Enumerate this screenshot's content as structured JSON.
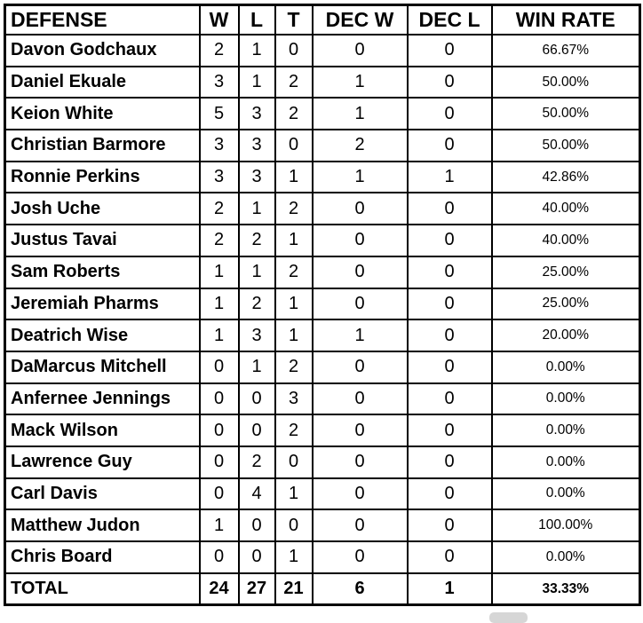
{
  "chart_data": {
    "type": "table",
    "columns": [
      "DEFENSE",
      "W",
      "L",
      "T",
      "DEC W",
      "DEC L",
      "WIN RATE"
    ],
    "rows": [
      [
        "Davon Godchaux",
        2,
        1,
        0,
        0,
        0,
        "66.67%"
      ],
      [
        "Daniel Ekuale",
        3,
        1,
        2,
        1,
        0,
        "50.00%"
      ],
      [
        "Keion White",
        5,
        3,
        2,
        1,
        0,
        "50.00%"
      ],
      [
        "Christian Barmore",
        3,
        3,
        0,
        2,
        0,
        "50.00%"
      ],
      [
        "Ronnie Perkins",
        3,
        3,
        1,
        1,
        1,
        "42.86%"
      ],
      [
        "Josh Uche",
        2,
        1,
        2,
        0,
        0,
        "40.00%"
      ],
      [
        "Justus Tavai",
        2,
        2,
        1,
        0,
        0,
        "40.00%"
      ],
      [
        "Sam Roberts",
        1,
        1,
        2,
        0,
        0,
        "25.00%"
      ],
      [
        "Jeremiah Pharms",
        1,
        2,
        1,
        0,
        0,
        "25.00%"
      ],
      [
        "Deatrich Wise",
        1,
        3,
        1,
        1,
        0,
        "20.00%"
      ],
      [
        "DaMarcus Mitchell",
        0,
        1,
        2,
        0,
        0,
        "0.00%"
      ],
      [
        "Anfernee Jennings",
        0,
        0,
        3,
        0,
        0,
        "0.00%"
      ],
      [
        "Mack Wilson",
        0,
        0,
        2,
        0,
        0,
        "0.00%"
      ],
      [
        "Lawrence Guy",
        0,
        2,
        0,
        0,
        0,
        "0.00%"
      ],
      [
        "Carl Davis",
        0,
        4,
        1,
        0,
        0,
        "0.00%"
      ],
      [
        "Matthew Judon",
        1,
        0,
        0,
        0,
        0,
        "100.00%"
      ],
      [
        "Chris Board",
        0,
        0,
        1,
        0,
        0,
        "0.00%"
      ]
    ],
    "total": [
      "TOTAL",
      24,
      27,
      21,
      6,
      1,
      "33.33%"
    ]
  },
  "colors": {
    "border": "#000000",
    "background": "#ffffff",
    "text": "#000000",
    "scroll_indicator": "#d6d6d6"
  }
}
